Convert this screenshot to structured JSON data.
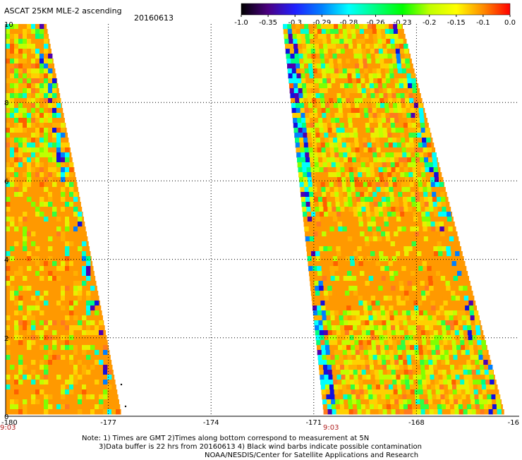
{
  "header": {
    "title": "ASCAT 25KM MLE-2 ascending",
    "date": "20160613"
  },
  "colorbar": {
    "labels": [
      "-1.0",
      "-0.35",
      "-0.3",
      "-0.29",
      "-0.28",
      "-0.26",
      "-0.23",
      "-0.2",
      "-0.15",
      "-0.1",
      "0.0"
    ]
  },
  "time_labels": [
    "9:03",
    "9:03"
  ],
  "notes": {
    "line1": "Note: 1) Times are GMT 2)Times along bottom correspond to measurement at 5N",
    "line2": "3)Data buffer is 22 hrs from 20160613 4) Black wind barbs indicate possible contamination",
    "line3": "NOAA/NESDIS/Center for Satellite Applications and Research"
  },
  "chart_data": {
    "type": "heatmap",
    "title": "ASCAT 25KM MLE-2 ascending",
    "date": "20160613",
    "x_ticks": [
      "-180",
      "-177",
      "-174",
      "-171",
      "-168",
      "-16"
    ],
    "y_ticks": [
      "0",
      "2",
      "4",
      "6",
      "8",
      "10"
    ],
    "xlim": [
      -180,
      -165
    ],
    "ylim": [
      0,
      10
    ],
    "grid": true,
    "value_scale": {
      "labels": [
        -1.0,
        -0.35,
        -0.3,
        -0.29,
        -0.28,
        -0.26,
        -0.23,
        -0.2,
        -0.15,
        -0.1,
        0.0
      ],
      "colors": [
        "#000000",
        "#4b0082",
        "#2020ff",
        "#0080ff",
        "#00ffff",
        "#00ff80",
        "#00ff00",
        "#c0ff00",
        "#ffff00",
        "#ff8c00",
        "#ff0000"
      ]
    },
    "swaths": [
      {
        "name": "western swath",
        "lat_top": 10,
        "lat_bottom": 0,
        "west_edge_top": -180,
        "west_edge_bottom": -180,
        "east_edge_top": -178.8,
        "east_edge_bottom": -176.6,
        "dominant_value": -0.12
      },
      {
        "name": "eastern swath",
        "lat_top": 10,
        "lat_bottom": 0,
        "west_edge_top": -171.9,
        "west_edge_bottom": -170.7,
        "east_edge_top": -168.4,
        "east_edge_bottom": -165.4,
        "dominant_value": -0.12
      }
    ]
  }
}
